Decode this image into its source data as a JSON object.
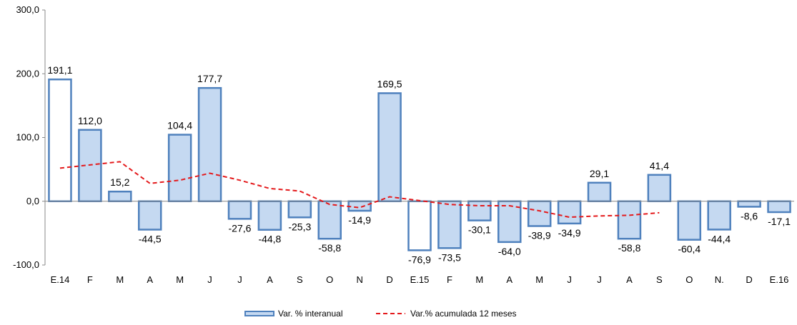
{
  "chart_data": {
    "type": "bar",
    "categories": [
      "E.14",
      "F",
      "M",
      "A",
      "M",
      "J",
      "J",
      "A",
      "S",
      "O",
      "N",
      "D",
      "E.15",
      "F",
      "M",
      "A",
      "M",
      "J",
      "J",
      "A",
      "S",
      "O",
      "N.",
      "D",
      "E.16"
    ],
    "series": [
      {
        "name": "Var. % interanual",
        "type": "bar",
        "values": [
          191.1,
          112.0,
          15.2,
          -44.5,
          104.4,
          177.7,
          -27.6,
          -44.8,
          -25.3,
          -58.8,
          -14.9,
          169.5,
          -76.9,
          -73.5,
          -30.1,
          -64.0,
          -38.9,
          -34.9,
          29.1,
          -58.8,
          41.4,
          -60.4,
          -44.4,
          -8.6,
          -17.1
        ],
        "labels": [
          "191,1",
          "112,0",
          "15,2",
          "-44,5",
          "104,4",
          "177,7",
          "-27,6",
          "-44,8",
          "-25,3",
          "-58,8",
          "-14,9",
          "169,5",
          "-76,9",
          "-73,5",
          "-30,1",
          "-64,0",
          "-38,9",
          "-34,9",
          "29,1",
          "-58,8",
          "41,4",
          "-60,4",
          "-44,4",
          "-8,6",
          "-17,1"
        ],
        "hollow_categories": [
          0,
          12
        ],
        "fill_color": "#c5d9f1",
        "stroke_color": "#4f81bd"
      },
      {
        "name": "Var.% acumulada 12 meses",
        "type": "line",
        "style": "dashed",
        "color": "#e41a1c",
        "values": [
          52,
          57,
          62,
          28,
          33,
          44,
          33,
          20,
          16,
          -5,
          -10,
          7,
          1,
          -5,
          -7,
          -7,
          -15,
          -25,
          -23,
          -22,
          -18,
          null,
          null,
          null,
          null
        ]
      }
    ],
    "yaxis": {
      "ylim": [
        -100,
        300
      ],
      "ticks": [
        -100,
        0,
        100,
        200,
        300
      ],
      "tick_labels": [
        "-100,0",
        "0,0",
        "100,0",
        "200,0",
        "300,0"
      ]
    },
    "legend_position": "bottom-center",
    "grid": false
  }
}
